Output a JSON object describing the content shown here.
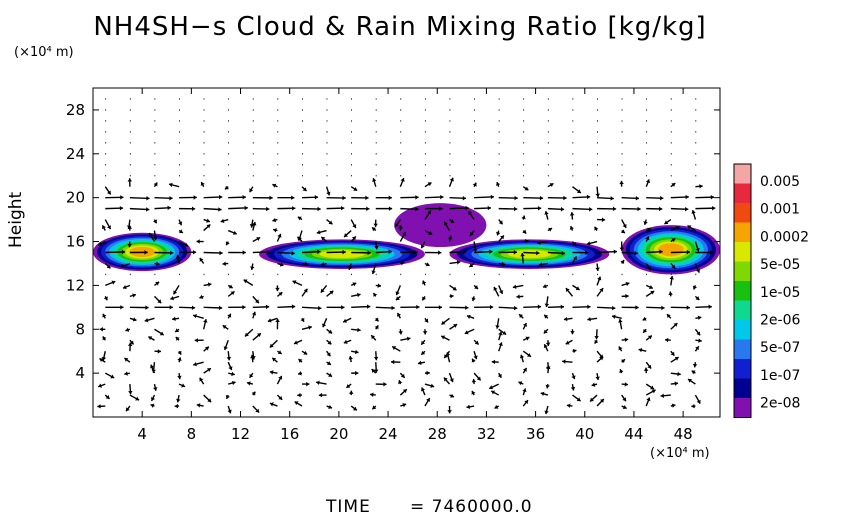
{
  "chart_data": {
    "type": "heatmap",
    "title": "NH4SH−s Cloud & Rain Mixing Ratio [kg/kg]",
    "ylabel": "Height",
    "x_unit": "(×10⁴ m)",
    "y_unit": "(×10⁴ m)",
    "xlim": [
      0,
      51
    ],
    "ylim": [
      0,
      30
    ],
    "x_ticks": [
      4,
      8,
      12,
      16,
      20,
      24,
      28,
      32,
      36,
      40,
      44,
      48
    ],
    "y_ticks": [
      4,
      8,
      12,
      16,
      20,
      24,
      28
    ],
    "colorbar": {
      "labels": [
        "0.005",
        "0.001",
        "0.0002",
        "5e-05",
        "1e-05",
        "2e-06",
        "5e-07",
        "1e-07",
        "2e-08"
      ],
      "colors": [
        "#f4a6a6",
        "#e8283c",
        "#f04a10",
        "#f5a400",
        "#d8e800",
        "#7fd800",
        "#18c010",
        "#10d890",
        "#00c8e8",
        "#2878f0",
        "#1020d0",
        "#000090",
        "#8010b0"
      ]
    },
    "cloud_layers": [
      {
        "x_range": [
          0,
          8
        ],
        "y_range": [
          13.3,
          16.8
        ],
        "peak": "0.0002"
      },
      {
        "x_range": [
          13.5,
          27
        ],
        "y_range": [
          13.5,
          16.2
        ],
        "peak": "5e-05"
      },
      {
        "x_range": [
          24.5,
          32
        ],
        "y_range": [
          15.5,
          19.5
        ],
        "peak": "2e-08"
      },
      {
        "x_range": [
          29,
          42
        ],
        "y_range": [
          13.5,
          16.2
        ],
        "peak": "5e-05"
      },
      {
        "x_range": [
          43,
          51
        ],
        "y_range": [
          13,
          17.5
        ],
        "peak": "0.0002"
      }
    ],
    "wind_jets": [
      {
        "y": 10,
        "direction": "eastward"
      },
      {
        "y": 15,
        "direction": "eastward"
      },
      {
        "y": 19,
        "direction": "eastward"
      },
      {
        "y": 20,
        "direction": "eastward"
      }
    ]
  },
  "footer": {
    "label": "TIME",
    "value": "= 7460000.0"
  }
}
